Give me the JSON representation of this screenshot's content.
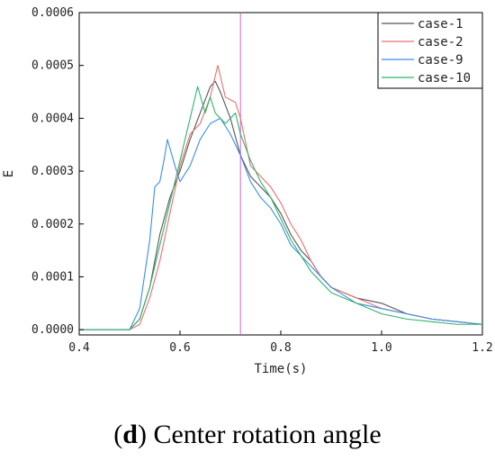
{
  "caption": {
    "letter": "d",
    "text": "Center rotation angle"
  },
  "chart_data": {
    "type": "line",
    "title": "",
    "xlabel": "Time(s)",
    "ylabel": "E",
    "xlim": [
      0.4,
      1.2
    ],
    "ylim": [
      -1e-05,
      0.0006
    ],
    "xticks": [
      0.4,
      0.6,
      0.8,
      1.0,
      1.2
    ],
    "xtick_labels": [
      "0.4",
      "0.6",
      "0.8",
      "1.0",
      "1.2"
    ],
    "yticks": [
      0.0,
      0.0001,
      0.0002,
      0.0003,
      0.0004,
      0.0005,
      0.0006
    ],
    "ytick_labels": [
      "0.0000",
      "0.0001",
      "0.0002",
      "0.0003",
      "0.0004",
      "0.0005",
      "0.0006"
    ],
    "grid": false,
    "legend_position": "top-right",
    "vertical_marker": {
      "x": 0.72,
      "color": "#cc66cc"
    },
    "series": [
      {
        "name": "case-1",
        "color": "#555555",
        "points": [
          [
            0.4,
            0
          ],
          [
            0.5,
            0
          ],
          [
            0.52,
            2e-05
          ],
          [
            0.54,
            8e-05
          ],
          [
            0.56,
            0.00018
          ],
          [
            0.58,
            0.00025
          ],
          [
            0.6,
            0.0003
          ],
          [
            0.62,
            0.00036
          ],
          [
            0.64,
            0.00041
          ],
          [
            0.66,
            0.00046
          ],
          [
            0.67,
            0.00047
          ],
          [
            0.68,
            0.00045
          ],
          [
            0.7,
            0.0004
          ],
          [
            0.72,
            0.00033
          ],
          [
            0.74,
            0.00029
          ],
          [
            0.76,
            0.00027
          ],
          [
            0.78,
            0.00025
          ],
          [
            0.8,
            0.00022
          ],
          [
            0.82,
            0.00018
          ],
          [
            0.84,
            0.00015
          ],
          [
            0.86,
            0.00013
          ],
          [
            0.88,
            0.0001
          ],
          [
            0.9,
            8e-05
          ],
          [
            0.95,
            6e-05
          ],
          [
            1.0,
            5e-05
          ],
          [
            1.05,
            3e-05
          ],
          [
            1.1,
            2e-05
          ],
          [
            1.15,
            1.5e-05
          ],
          [
            1.2,
            1e-05
          ]
        ]
      },
      {
        "name": "case-2",
        "color": "#e8706e",
        "points": [
          [
            0.4,
            0
          ],
          [
            0.5,
            0
          ],
          [
            0.52,
            1e-05
          ],
          [
            0.54,
            6e-05
          ],
          [
            0.56,
            0.00013
          ],
          [
            0.58,
            0.00022
          ],
          [
            0.6,
            0.00031
          ],
          [
            0.62,
            0.00037
          ],
          [
            0.64,
            0.00039
          ],
          [
            0.66,
            0.00044
          ],
          [
            0.675,
            0.0005
          ],
          [
            0.69,
            0.00044
          ],
          [
            0.71,
            0.00043
          ],
          [
            0.72,
            0.0004
          ],
          [
            0.74,
            0.00031
          ],
          [
            0.76,
            0.00029
          ],
          [
            0.78,
            0.00027
          ],
          [
            0.8,
            0.00024
          ],
          [
            0.82,
            0.0002
          ],
          [
            0.84,
            0.00017
          ],
          [
            0.86,
            0.00013
          ],
          [
            0.88,
            0.0001
          ],
          [
            0.9,
            8e-05
          ],
          [
            0.95,
            6e-05
          ],
          [
            1.0,
            4e-05
          ],
          [
            1.05,
            3e-05
          ],
          [
            1.1,
            2e-05
          ],
          [
            1.15,
            1.5e-05
          ],
          [
            1.2,
            1e-05
          ]
        ]
      },
      {
        "name": "case-9",
        "color": "#3a8ee6",
        "points": [
          [
            0.4,
            0
          ],
          [
            0.5,
            0
          ],
          [
            0.52,
            4e-05
          ],
          [
            0.54,
            0.00017
          ],
          [
            0.55,
            0.00027
          ],
          [
            0.56,
            0.00028
          ],
          [
            0.57,
            0.00033
          ],
          [
            0.575,
            0.00036
          ],
          [
            0.59,
            0.00031
          ],
          [
            0.6,
            0.00028
          ],
          [
            0.62,
            0.00031
          ],
          [
            0.64,
            0.00036
          ],
          [
            0.66,
            0.00039
          ],
          [
            0.68,
            0.0004
          ],
          [
            0.7,
            0.00037
          ],
          [
            0.72,
            0.00033
          ],
          [
            0.74,
            0.00028
          ],
          [
            0.76,
            0.00025
          ],
          [
            0.78,
            0.00023
          ],
          [
            0.8,
            0.0002
          ],
          [
            0.82,
            0.00016
          ],
          [
            0.84,
            0.00014
          ],
          [
            0.86,
            0.00012
          ],
          [
            0.88,
            0.0001
          ],
          [
            0.9,
            8e-05
          ],
          [
            0.95,
            5e-05
          ],
          [
            1.0,
            4e-05
          ],
          [
            1.05,
            3e-05
          ],
          [
            1.1,
            2e-05
          ],
          [
            1.15,
            1.5e-05
          ],
          [
            1.2,
            1e-05
          ]
        ]
      },
      {
        "name": "case-10",
        "color": "#2fb36d",
        "points": [
          [
            0.4,
            0
          ],
          [
            0.5,
            0
          ],
          [
            0.52,
            2e-05
          ],
          [
            0.54,
            8e-05
          ],
          [
            0.56,
            0.00016
          ],
          [
            0.58,
            0.00024
          ],
          [
            0.6,
            0.00032
          ],
          [
            0.62,
            0.0004
          ],
          [
            0.635,
            0.00046
          ],
          [
            0.65,
            0.00041
          ],
          [
            0.66,
            0.00044
          ],
          [
            0.67,
            0.00041
          ],
          [
            0.69,
            0.00039
          ],
          [
            0.71,
            0.00041
          ],
          [
            0.72,
            0.00037
          ],
          [
            0.74,
            0.00032
          ],
          [
            0.76,
            0.00028
          ],
          [
            0.78,
            0.00025
          ],
          [
            0.8,
            0.00021
          ],
          [
            0.82,
            0.00017
          ],
          [
            0.84,
            0.00014
          ],
          [
            0.86,
            0.00011
          ],
          [
            0.88,
            9e-05
          ],
          [
            0.9,
            7e-05
          ],
          [
            0.95,
            5e-05
          ],
          [
            1.0,
            3e-05
          ],
          [
            1.05,
            2e-05
          ],
          [
            1.1,
            1.5e-05
          ],
          [
            1.15,
            1e-05
          ],
          [
            1.2,
            1e-05
          ]
        ]
      }
    ]
  }
}
